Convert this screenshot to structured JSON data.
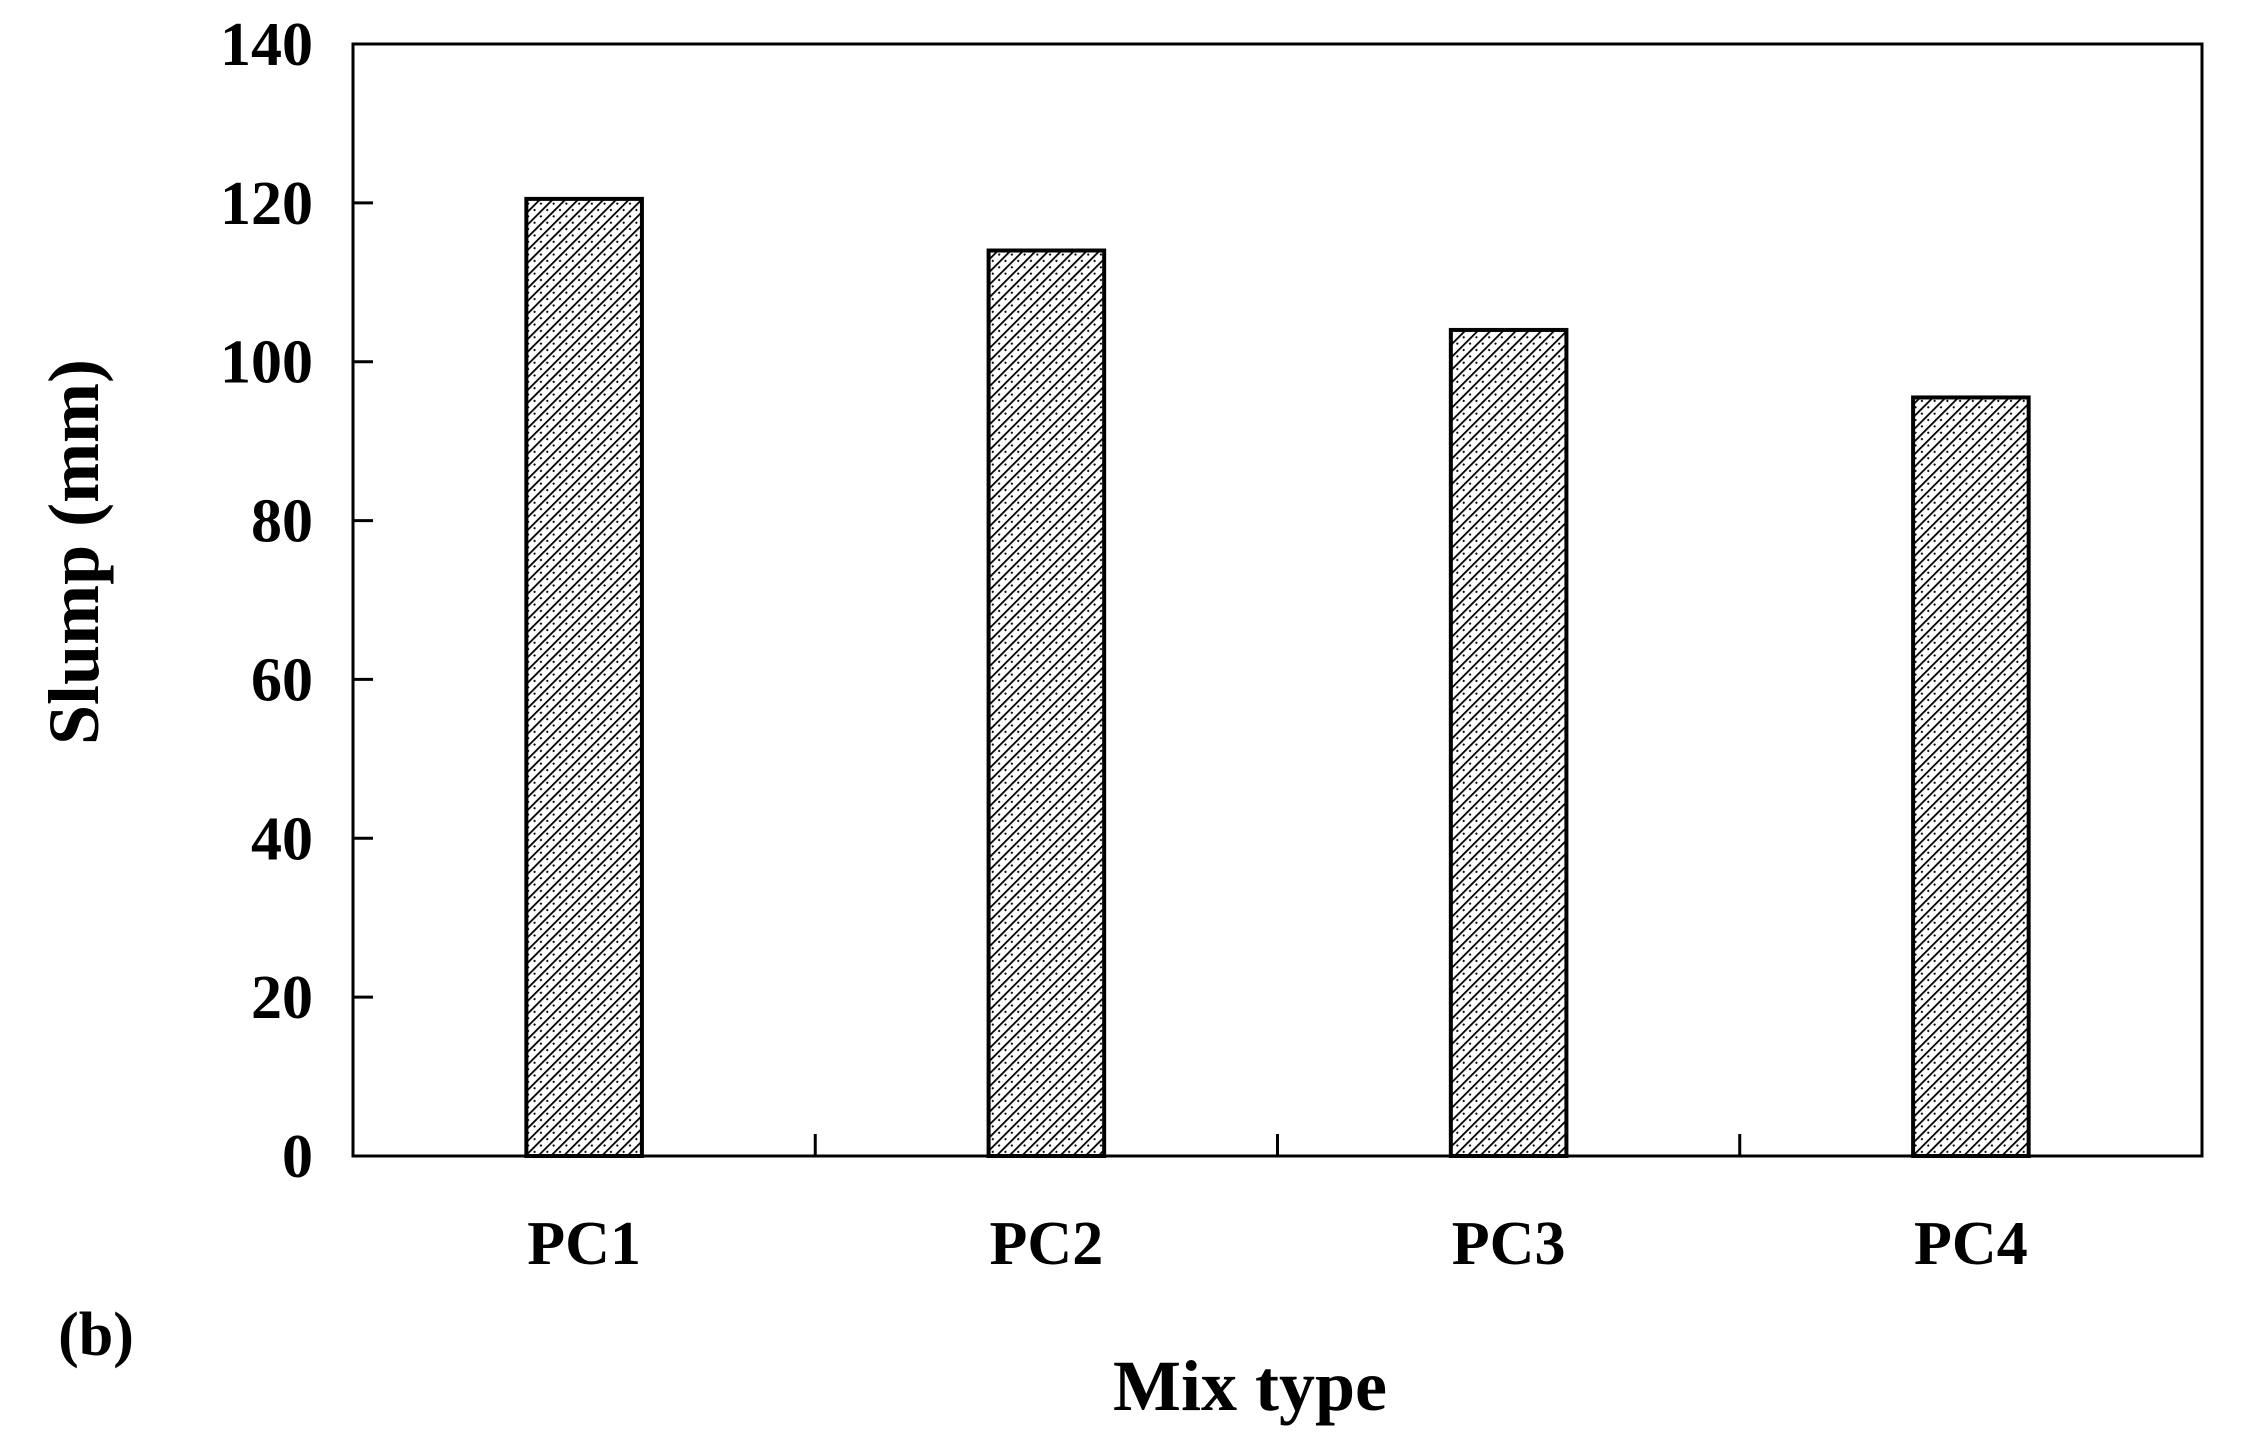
{
  "panel_label": "(b)",
  "chart_data": {
    "type": "bar",
    "title": "",
    "xlabel": "Mix type",
    "ylabel": "Slump (mm)",
    "categories": [
      "PC1",
      "PC2",
      "PC3",
      "PC4"
    ],
    "values": [
      120.5,
      114,
      104,
      95.5
    ],
    "ylim": [
      0,
      140
    ],
    "yticks": [
      0,
      20,
      40,
      60,
      80,
      100,
      120,
      140
    ],
    "grid": false,
    "legend": "none",
    "bar_fill": "hatched",
    "colors": {
      "bar_stroke": "#000000",
      "hatch": "#000000",
      "background": "#ffffff",
      "axis": "#000000"
    }
  }
}
